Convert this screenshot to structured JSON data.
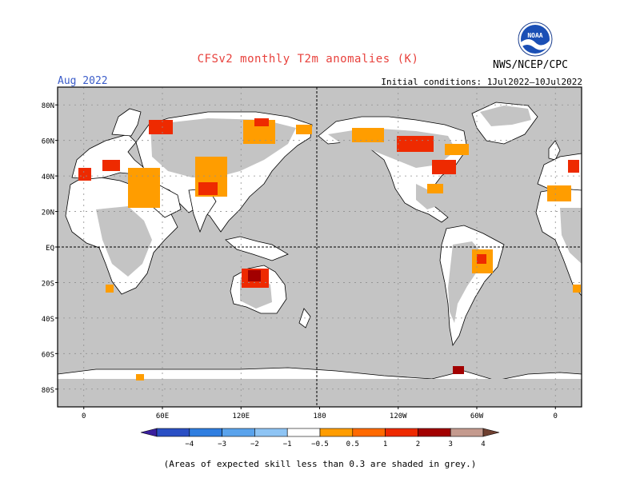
{
  "title": "CFSv2 monthly T2m anomalies (K)",
  "left_label": "Aug 2022",
  "right_label": "Initial conditions: 1Jul2022–10Jul2022",
  "agency": "NWS/NCEP/CPC",
  "logo_text": "NOAA",
  "footnote": "(Areas of expected skill less than 0.3 are shaded in grey.)",
  "colors": {
    "ocean": "#c4c4c4",
    "land": "#ffffff",
    "skill_grey": "#c4c4c4",
    "title": "#e8413c",
    "month_label": "#3b5cc9"
  },
  "map": {
    "lat_ticks": [
      "80N",
      "60N",
      "40N",
      "20N",
      "EQ",
      "20S",
      "40S",
      "60S",
      "80S"
    ],
    "lon_ticks": [
      "0",
      "60E",
      "120E",
      "180",
      "120W",
      "60W",
      "0"
    ],
    "lon_range": [
      -20,
      380
    ],
    "lat_range": [
      -90,
      90
    ]
  },
  "colorbar": {
    "bins": [
      {
        "color": "#3a1f9e"
      },
      {
        "color": "#2a4fc4"
      },
      {
        "color": "#2f7ee0"
      },
      {
        "color": "#5aa3ec"
      },
      {
        "color": "#8ec4f4"
      },
      {
        "color": "#ffffff"
      },
      {
        "color": "#ff9d00"
      },
      {
        "color": "#ff6a00"
      },
      {
        "color": "#ee2a00"
      },
      {
        "color": "#a20000"
      },
      {
        "color": "#c49a8e"
      },
      {
        "color": "#6f4030"
      }
    ],
    "labels": [
      "−4",
      "−3",
      "−2",
      "−1",
      "−0.5",
      "0.5",
      "1",
      "2",
      "3",
      "4"
    ]
  },
  "anomaly_patches": [
    {
      "lon": -10,
      "lat": 40,
      "level": "1",
      "region": "Iberia"
    },
    {
      "lon": 45,
      "lat": 35,
      "level": "0.5",
      "region": "Middle East"
    },
    {
      "lon": 100,
      "lat": 45,
      "level": "0.5",
      "region": "Mongolia"
    },
    {
      "lon": 90,
      "lat": 60,
      "level": "0.5",
      "region": "Siberia"
    },
    {
      "lon": 130,
      "lat": 62,
      "level": "1",
      "region": "E Siberia"
    },
    {
      "lon": -100,
      "lat": 60,
      "level": "1",
      "region": "N Canada"
    },
    {
      "lon": -75,
      "lat": 42,
      "level": "1",
      "region": "NE US"
    },
    {
      "lon": 130,
      "lat": -22,
      "level": "2",
      "region": "N Australia"
    },
    {
      "lon": -50,
      "lat": -12,
      "level": "1",
      "region": "Brazil"
    },
    {
      "lon": -60,
      "lat": -65,
      "level": "2",
      "region": "Antarctic Peninsula"
    }
  ]
}
